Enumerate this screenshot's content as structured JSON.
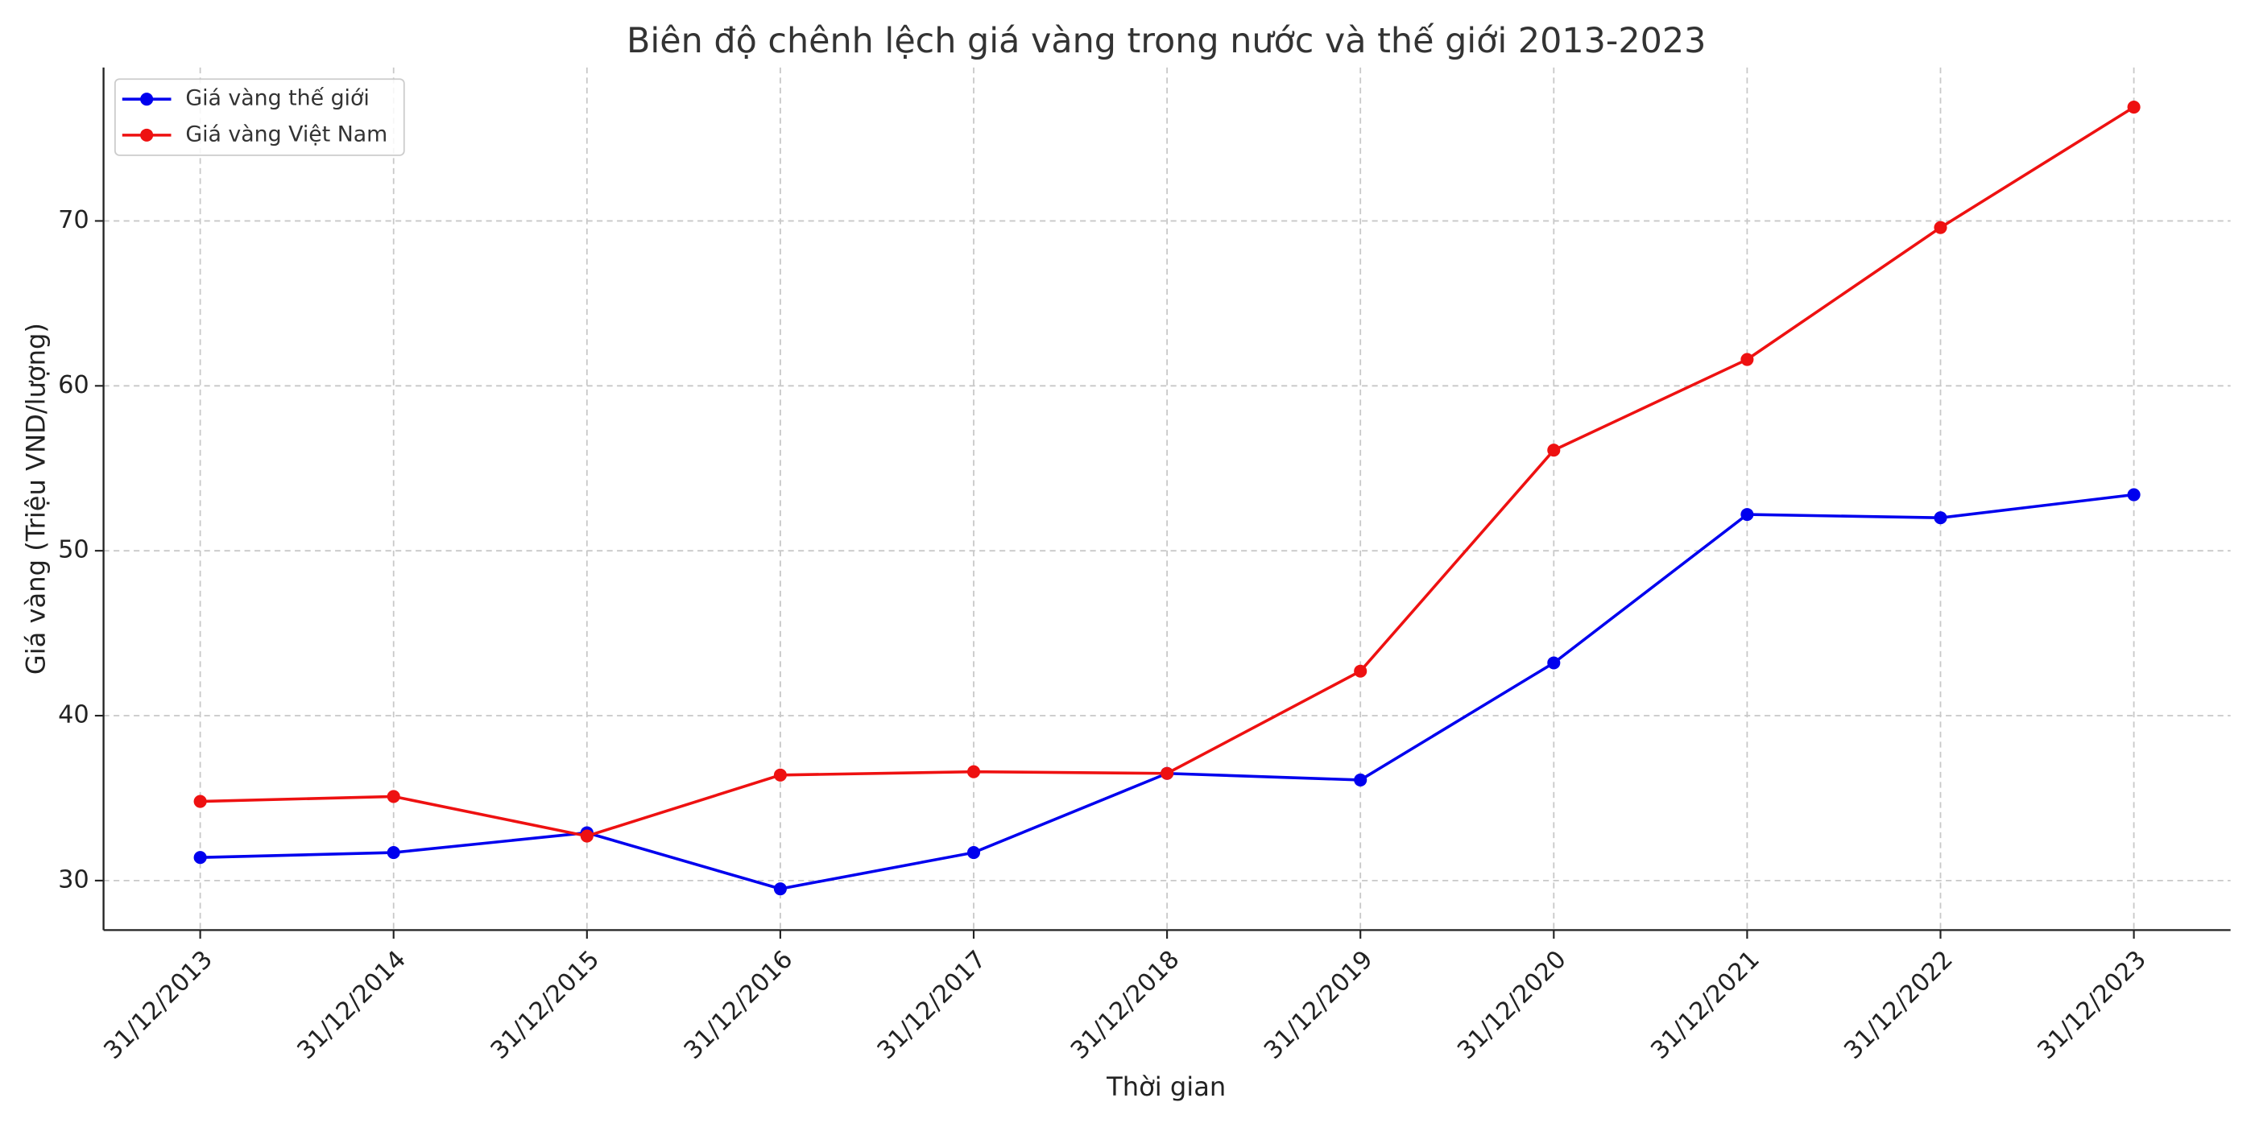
{
  "chart_data": {
    "type": "line",
    "title": "Biên độ chênh lệch giá vàng trong nước và thế giới 2013-2023",
    "x_label": "Thời gian",
    "y_label": "Giá vàng (Triệu VND/lượng)",
    "categories": [
      "31/12/2013",
      "31/12/2014",
      "31/12/2015",
      "31/12/2016",
      "31/12/2017",
      "31/12/2018",
      "31/12/2019",
      "31/12/2020",
      "31/12/2021",
      "31/12/2022",
      "31/12/2023"
    ],
    "series": [
      {
        "name": "Giá vàng thế giới",
        "color": "#0000ee",
        "values": [
          31.4,
          31.7,
          32.9,
          29.5,
          31.7,
          36.5,
          36.1,
          43.2,
          52.2,
          52.0,
          53.4
        ]
      },
      {
        "name": "Giá vàng Việt Nam",
        "color": "#ee1111",
        "values": [
          34.8,
          35.1,
          32.7,
          36.4,
          36.6,
          36.5,
          42.7,
          56.1,
          61.6,
          69.6,
          76.9
        ]
      }
    ],
    "ylim": [
      27.0,
      79.3
    ],
    "yticks": [
      30,
      40,
      50,
      60,
      70
    ],
    "grid": true,
    "legend": "upper-left"
  }
}
